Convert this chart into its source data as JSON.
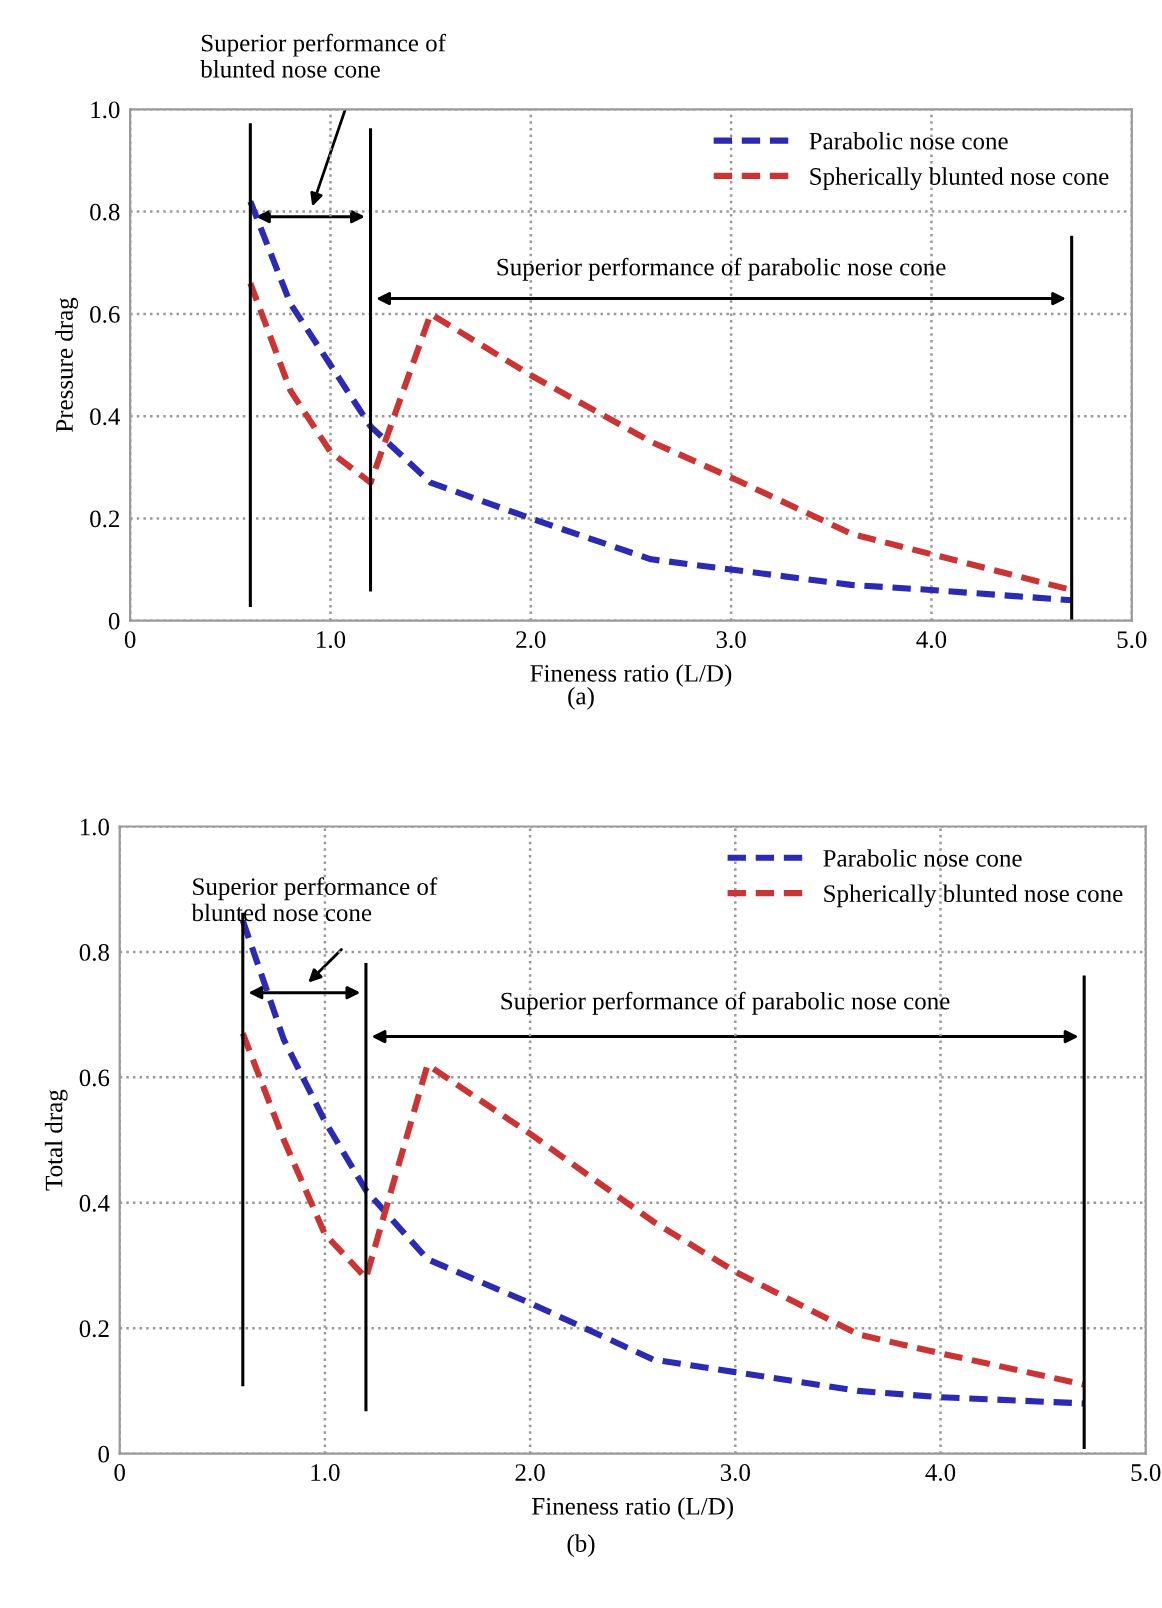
{
  "chart_data": [
    {
      "type": "line",
      "title": "(a)",
      "xlabel": "Fineness ratio (L/D)",
      "ylabel": "Pressure drag",
      "xlim": [
        0,
        5
      ],
      "ylim": [
        0,
        1
      ],
      "xticks": [
        0,
        {
          "value": 1,
          "label": "1.0"
        },
        {
          "value": 2,
          "label": "2.0"
        },
        {
          "value": 3,
          "label": "3.0"
        },
        {
          "value": 4,
          "label": "4.0"
        },
        {
          "value": 5,
          "label": "5.0"
        }
      ],
      "yticks": [
        0,
        0.2,
        0.4,
        0.6,
        0.8,
        {
          "value": 1,
          "label": "1.0"
        }
      ],
      "grid": true,
      "legend": "top right",
      "line_style": "dashed",
      "x": [
        0.6,
        0.8,
        1.0,
        1.2,
        1.5,
        2.0,
        2.6,
        3.0,
        3.6,
        4.0,
        4.7
      ],
      "series": [
        {
          "name": "Parabolic nose cone",
          "color": "#2a2ab5",
          "values": [
            0.82,
            0.62,
            0.5,
            0.38,
            0.27,
            0.2,
            0.12,
            0.1,
            0.07,
            0.06,
            0.04
          ]
        },
        {
          "name": "Spherically blunted nose cone",
          "color": "#cc3333",
          "values": [
            0.66,
            0.45,
            0.33,
            0.27,
            0.6,
            0.48,
            0.35,
            0.28,
            0.17,
            0.13,
            0.06
          ]
        }
      ],
      "ref_lines": [
        {
          "axis": "x",
          "value": 0.6,
          "color": "#000000"
        },
        {
          "axis": "x",
          "value": 1.2,
          "color": "#000000"
        },
        {
          "axis": "x",
          "value": 4.7,
          "color": "#000000"
        }
      ],
      "annotations": [
        "Superior performance of\nblunted nose cone",
        "Superior performance of parabolic nose cone"
      ]
    },
    {
      "type": "line",
      "title": "(b)",
      "xlabel": "Fineness ratio (L/D)",
      "ylabel": "Total drag",
      "xlim": [
        0,
        5
      ],
      "ylim": [
        0,
        1
      ],
      "xticks": [
        0,
        {
          "value": 1,
          "label": "1.0"
        },
        {
          "value": 2,
          "label": "2.0"
        },
        {
          "value": 3,
          "label": "3.0"
        },
        {
          "value": 4,
          "label": "4.0"
        },
        {
          "value": 5,
          "label": "5.0"
        }
      ],
      "yticks": [
        0,
        0.2,
        0.4,
        0.6,
        0.8,
        {
          "value": 1,
          "label": "1.0"
        }
      ],
      "grid": true,
      "legend": "top right",
      "line_style": "dashed",
      "x": [
        0.6,
        0.8,
        1.0,
        1.2,
        1.5,
        2.0,
        2.6,
        3.0,
        3.6,
        4.0,
        4.7
      ],
      "series": [
        {
          "name": "Parabolic nose cone",
          "color": "#2a2ab5",
          "values": [
            0.85,
            0.66,
            0.53,
            0.42,
            0.31,
            0.24,
            0.15,
            0.13,
            0.1,
            0.09,
            0.08
          ]
        },
        {
          "name": "Spherically blunted nose cone",
          "color": "#cc3333",
          "values": [
            0.67,
            0.5,
            0.35,
            0.28,
            0.62,
            0.51,
            0.37,
            0.29,
            0.19,
            0.16,
            0.11
          ]
        }
      ],
      "ref_lines": [
        {
          "axis": "x",
          "value": 0.6,
          "color": "#000000"
        },
        {
          "axis": "x",
          "value": 1.2,
          "color": "#000000"
        },
        {
          "axis": "x",
          "value": 4.7,
          "color": "#000000"
        }
      ],
      "annotations": [
        "Superior performance of\nblunted nose cone",
        "Superior performance of parabolic nose cone"
      ]
    }
  ]
}
